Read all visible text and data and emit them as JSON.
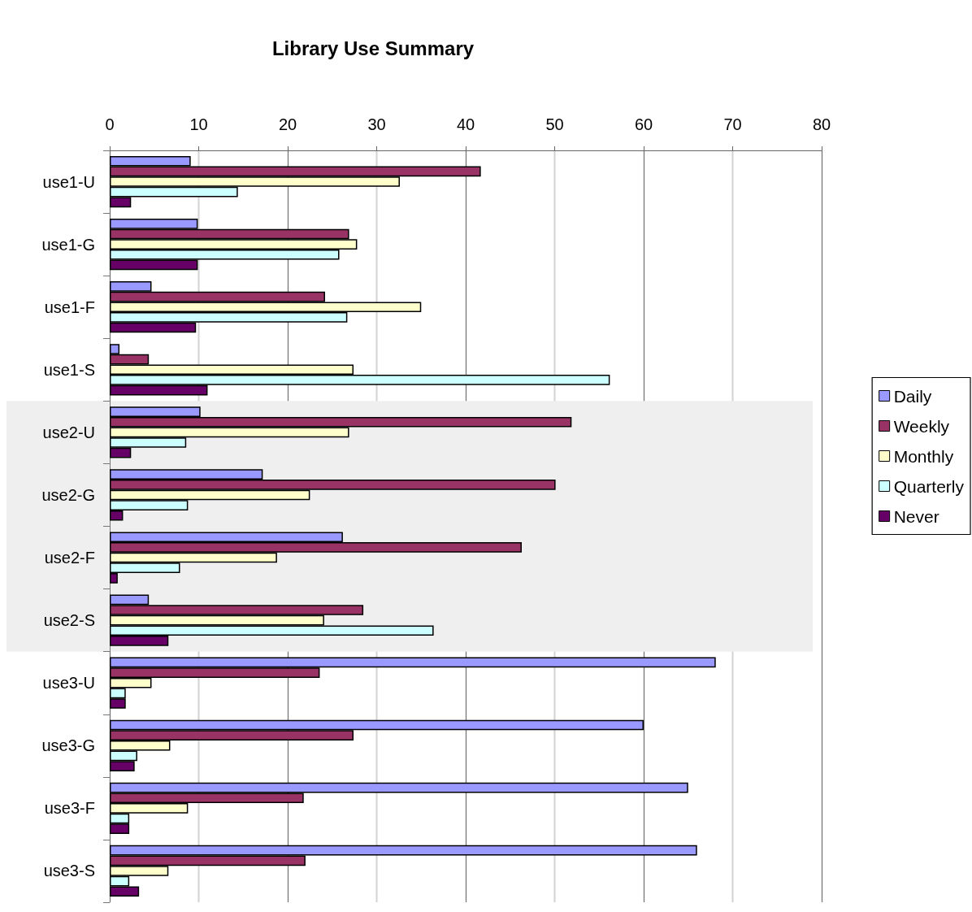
{
  "chart_data": {
    "type": "bar",
    "orientation": "horizontal",
    "title": "Library Use Summary",
    "categories": [
      "use1-U",
      "use1-G",
      "use1-F",
      "use1-S",
      "use2-U",
      "use2-G",
      "use2-F",
      "use2-S",
      "use3-U",
      "use3-G",
      "use3-F",
      "use3-S"
    ],
    "series": [
      {
        "name": "Daily",
        "color": "#9999ff",
        "values": [
          9.1,
          9.9,
          4.7,
          1.1,
          10.2,
          17.2,
          26.2,
          4.4,
          68.1,
          60.0,
          65.0,
          66.0
        ]
      },
      {
        "name": "Weekly",
        "color": "#993366",
        "values": [
          41.7,
          26.9,
          24.2,
          4.4,
          51.9,
          50.1,
          46.3,
          28.5,
          23.6,
          27.4,
          21.8,
          22.0
        ]
      },
      {
        "name": "Monthly",
        "color": "#ffffcc",
        "values": [
          32.6,
          27.8,
          35.0,
          27.4,
          26.9,
          22.5,
          18.8,
          24.1,
          4.7,
          6.8,
          8.8,
          6.6
        ]
      },
      {
        "name": "Quarterly",
        "color": "#ccffff",
        "values": [
          14.4,
          25.8,
          26.7,
          56.2,
          8.6,
          8.8,
          7.9,
          36.4,
          1.8,
          3.1,
          2.2,
          2.2
        ]
      },
      {
        "name": "Never",
        "color": "#660066",
        "values": [
          2.4,
          9.9,
          9.7,
          11.0,
          2.4,
          1.5,
          0.9,
          6.6,
          1.8,
          2.8,
          2.2,
          3.3
        ]
      }
    ],
    "xlim": [
      0,
      80
    ],
    "xticks": [
      0,
      10,
      20,
      30,
      40,
      50,
      60,
      70,
      80
    ],
    "bands": [
      {
        "axis": "y",
        "from": "use2-U",
        "to": "use2-S",
        "color": "#efefef"
      }
    ],
    "grid": "x",
    "legend": "right"
  }
}
